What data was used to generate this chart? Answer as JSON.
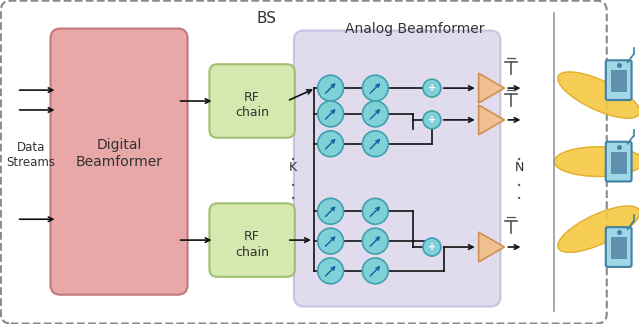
{
  "fig_width": 6.4,
  "fig_height": 3.24,
  "dpi": 100,
  "bg_color": "#ffffff",
  "bs_label": "BS",
  "analog_label": "Analog Beamformer",
  "digital_label1": "Digital",
  "digital_label2": "Beamformer",
  "rf_label1": "RF",
  "rf_label2": "chain",
  "data_label1": "Data",
  "data_label2": "Streams",
  "k_label": "K",
  "n_label": "N",
  "colors": {
    "bs_edge": "#888888",
    "digital_face": "#e8a8a8",
    "digital_edge": "#c07878",
    "analog_face": "#c8c0e0",
    "analog_edge": "#b0a0d0",
    "rf_face": "#d4e8b0",
    "rf_edge": "#a0c070",
    "phase_face": "#80d0d8",
    "phase_edge": "#40a0b0",
    "adder_face": "#80d0d8",
    "adder_edge": "#40a0b0",
    "amp_face": "#f0c090",
    "amp_edge": "#d09050",
    "arrow": "#111111",
    "line": "#111111",
    "beam": "#f5c842",
    "beam_edge": "#e0a820",
    "phone_body": "#a0d8e8",
    "phone_edge": "#4080a0",
    "phone_screen": "#6090b0",
    "antenna_color": "#555555",
    "dot_color": "#555555",
    "text_color": "#222222"
  }
}
